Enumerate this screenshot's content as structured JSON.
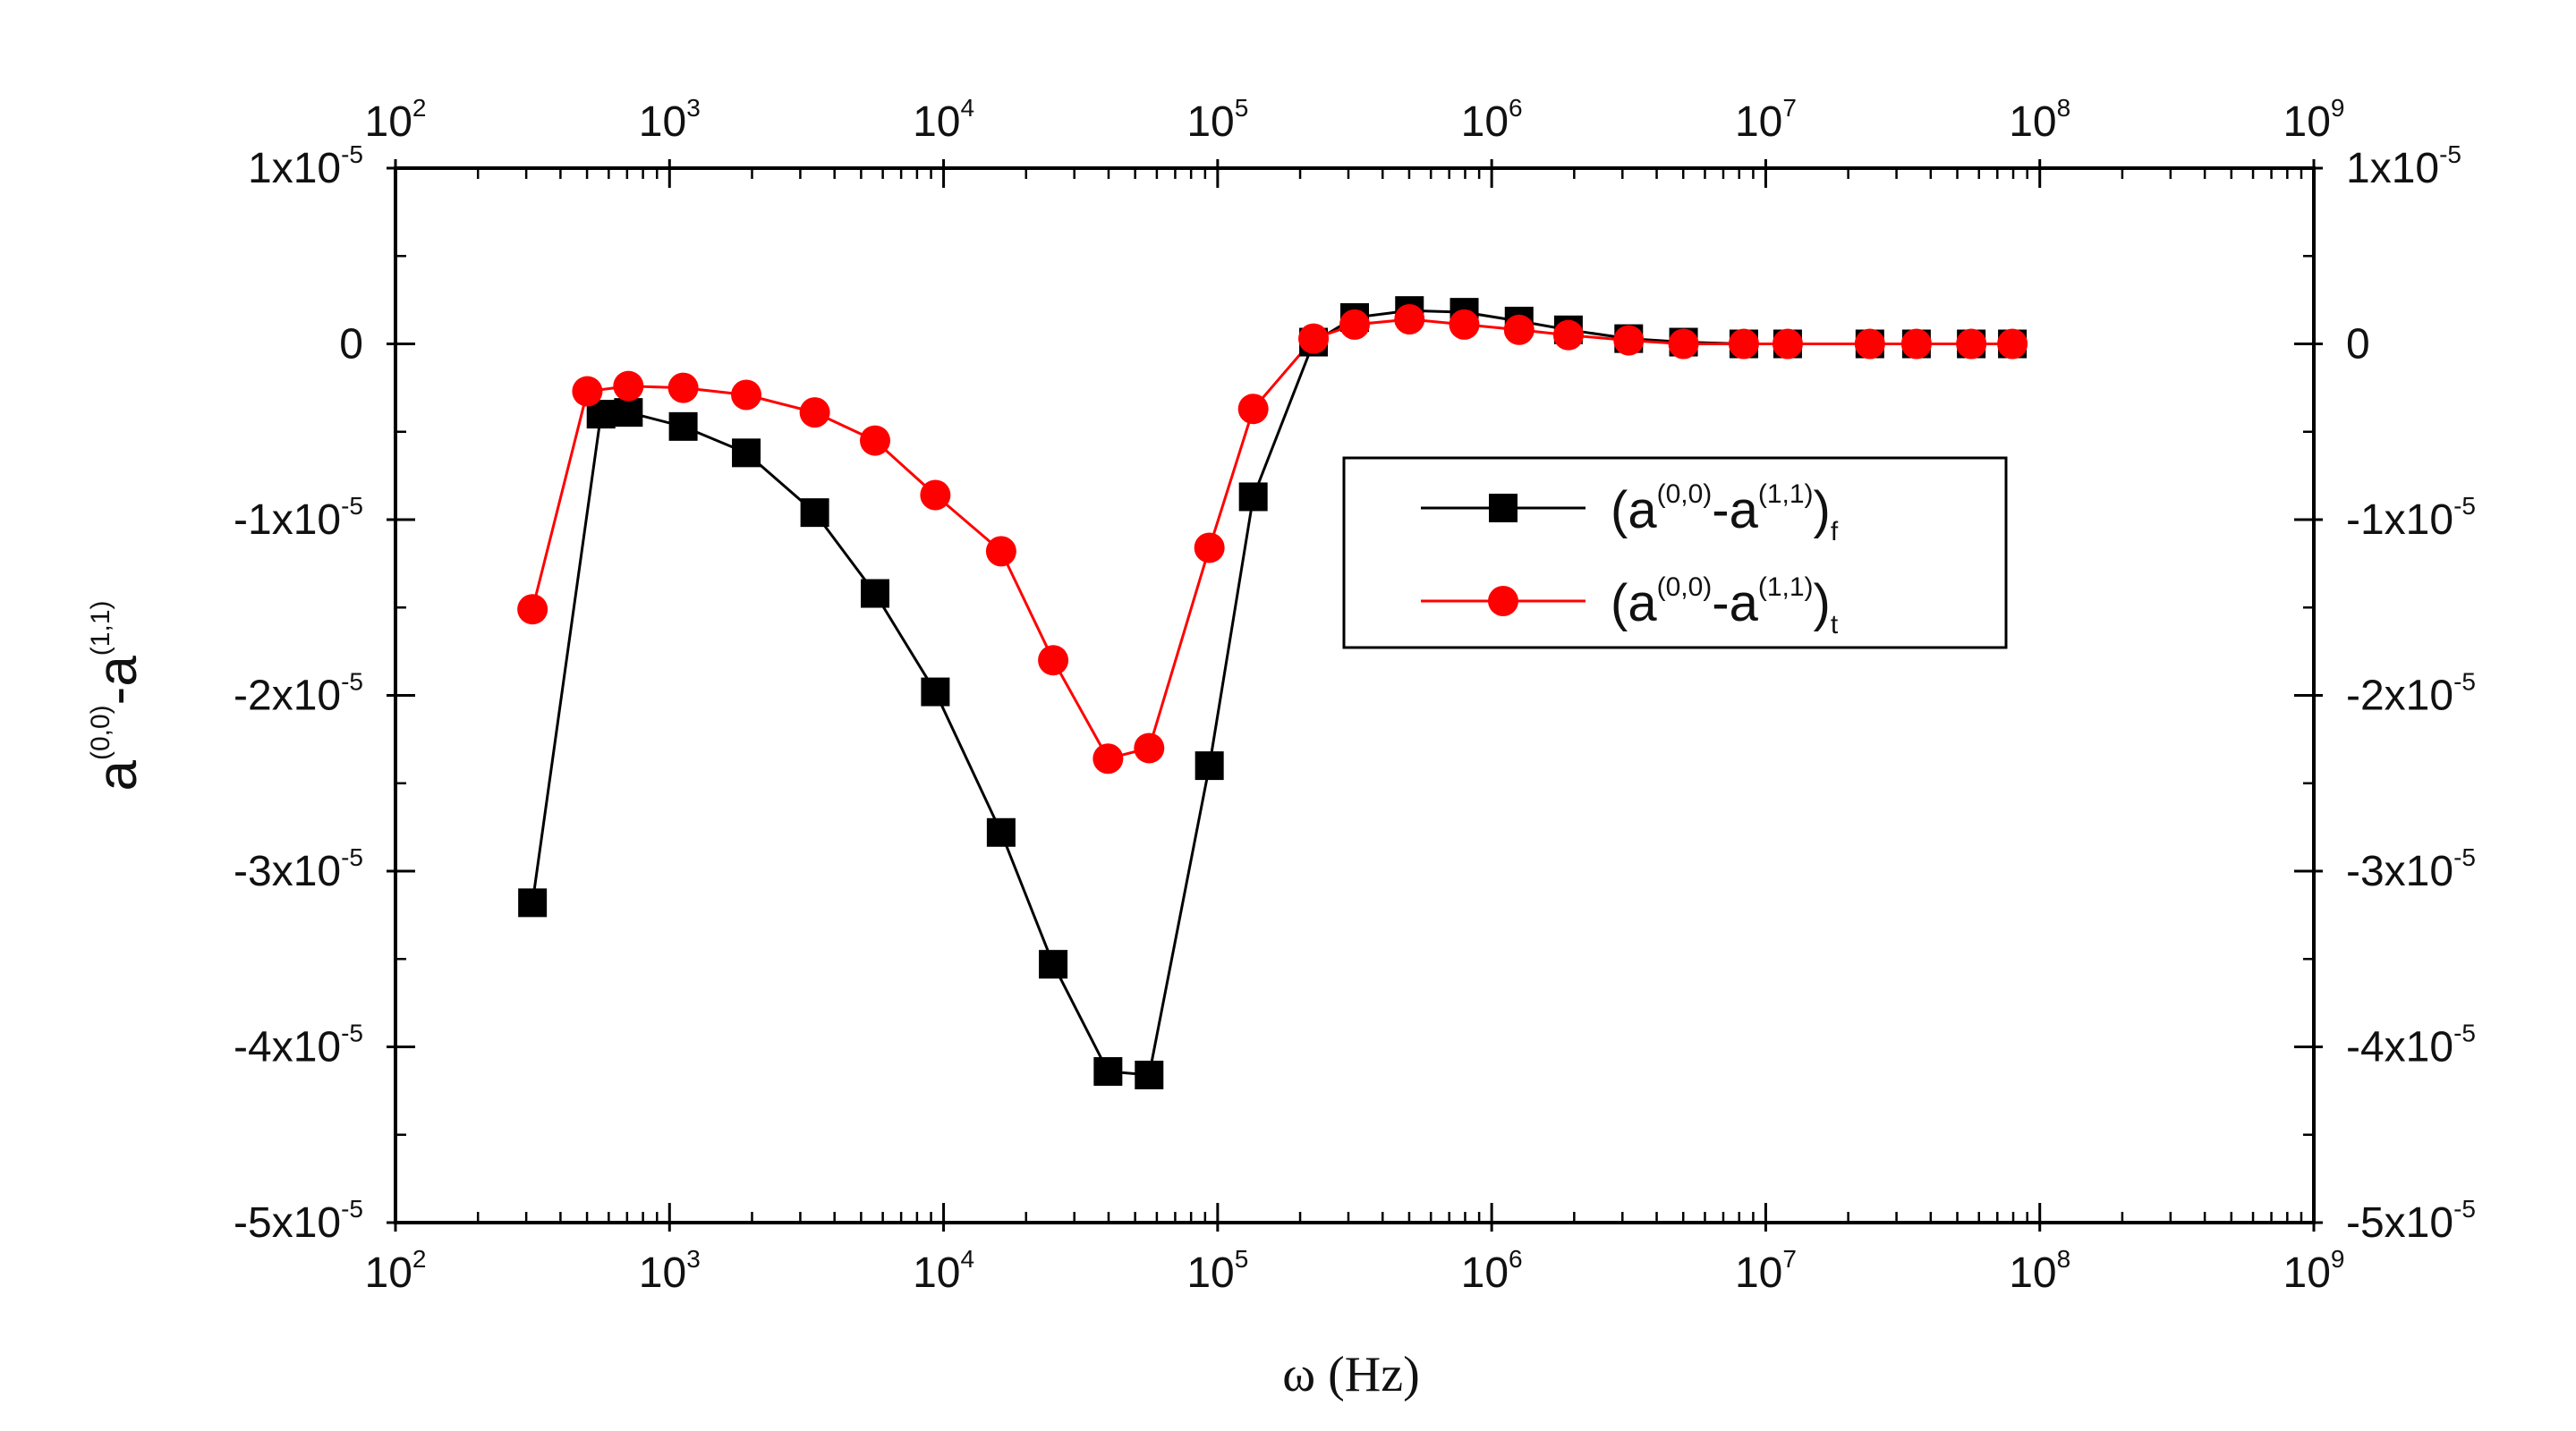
{
  "chart_data": {
    "type": "line",
    "title": "",
    "xlabel": "ω (Hz)",
    "xscale": "log",
    "xlim_exp": [
      2,
      9
    ],
    "x_tick_base": "10",
    "x_tick_exponents": [
      "2",
      "3",
      "4",
      "5",
      "6",
      "7",
      "8",
      "9"
    ],
    "ylabel": {
      "base1": "a",
      "sup1": "(0,0)",
      "mid": "-a",
      "sup2": "(1,1)"
    },
    "ylim": [
      -5e-05,
      1e-05
    ],
    "y_ticks": [
      {
        "value": 1e-05,
        "mantissa": "1x10",
        "exp": "-5"
      },
      {
        "value": 0,
        "mantissa": "0",
        "exp": ""
      },
      {
        "value": -1e-05,
        "mantissa": "-1x10",
        "exp": "-5"
      },
      {
        "value": -2e-05,
        "mantissa": "-2x10",
        "exp": "-5"
      },
      {
        "value": -3e-05,
        "mantissa": "-3x10",
        "exp": "-5"
      },
      {
        "value": -4e-05,
        "mantissa": "-4x10",
        "exp": "-5"
      },
      {
        "value": -5e-05,
        "mantissa": "-5x10",
        "exp": "-5"
      }
    ],
    "legend_position": "center-right",
    "series": [
      {
        "name": "(a(0,0)-a(1,1))f",
        "label_parts": {
          "base1": "(a",
          "sup1": "(0,0)",
          "mid": "-a",
          "sup2": "(1,1)",
          "close": ")",
          "sub": "f"
        },
        "color": "#000000",
        "marker": "square",
        "x": [
          2.5,
          2.75,
          2.85,
          3.05,
          3.28,
          3.53,
          3.75,
          3.97,
          4.21,
          4.4,
          4.6,
          4.75,
          4.97,
          5.13,
          5.35,
          5.5,
          5.7,
          5.9,
          6.1,
          6.28,
          6.5,
          6.7,
          6.92,
          7.08,
          7.38,
          7.55,
          7.75,
          7.9
        ],
        "y": [
          -3.18e-05,
          -4e-06,
          -3.9e-06,
          -4.7e-06,
          -6.2e-06,
          -9.6e-06,
          -1.42e-05,
          -1.98e-05,
          -2.78e-05,
          -3.53e-05,
          -4.14e-05,
          -4.16e-05,
          -2.4e-05,
          -8.7e-06,
          1e-07,
          1.5e-06,
          1.9e-06,
          1.8e-06,
          1.3e-06,
          8e-07,
          3e-07,
          1e-07,
          0.0,
          0.0,
          0.0,
          0.0,
          0.0,
          0.0
        ]
      },
      {
        "name": "(a(0,0)-a(1,1))t",
        "label_parts": {
          "base1": "(a",
          "sup1": "(0,0)",
          "mid": "-a",
          "sup2": "(1,1)",
          "close": ")",
          "sub": "t"
        },
        "color": "#ff0000",
        "marker": "circle",
        "x": [
          2.5,
          2.7,
          2.85,
          3.05,
          3.28,
          3.53,
          3.75,
          3.97,
          4.21,
          4.4,
          4.6,
          4.75,
          4.97,
          5.13,
          5.35,
          5.5,
          5.7,
          5.9,
          6.1,
          6.28,
          6.5,
          6.7,
          6.92,
          7.08,
          7.38,
          7.55,
          7.75,
          7.9
        ],
        "y": [
          -1.51e-05,
          -2.7e-06,
          -2.4e-06,
          -2.5e-06,
          -2.9e-06,
          -3.9e-06,
          -5.5e-06,
          -8.6e-06,
          -1.18e-05,
          -1.8e-05,
          -2.36e-05,
          -2.3e-05,
          -1.16e-05,
          -3.7e-06,
          3e-07,
          1.1e-06,
          1.4e-06,
          1.1e-06,
          8e-07,
          5e-07,
          2e-07,
          0.0,
          0.0,
          0.0,
          0.0,
          0.0,
          0.0,
          0.0
        ]
      }
    ]
  }
}
